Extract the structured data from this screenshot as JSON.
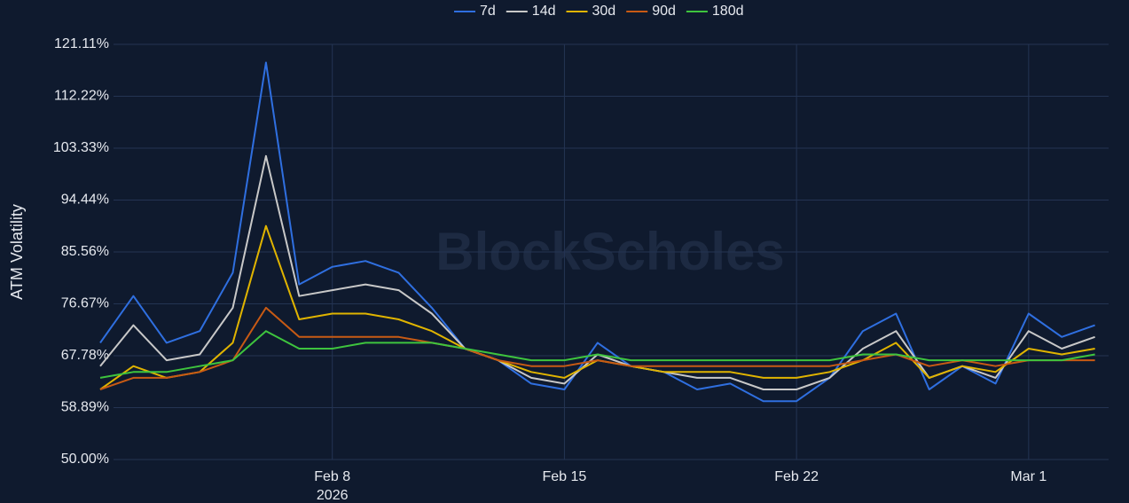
{
  "chart_data": {
    "type": "line",
    "y_label": "ATM Volatility",
    "watermark": "BlockScholes",
    "x": [
      "2026-02-01",
      "2026-02-02",
      "2026-02-03",
      "2026-02-04",
      "2026-02-05",
      "2026-02-06",
      "2026-02-07",
      "2026-02-08",
      "2026-02-09",
      "2026-02-10",
      "2026-02-11",
      "2026-02-12",
      "2026-02-13",
      "2026-02-14",
      "2026-02-15",
      "2026-02-16",
      "2026-02-17",
      "2026-02-18",
      "2026-02-19",
      "2026-02-20",
      "2026-02-21",
      "2026-02-22",
      "2026-02-23",
      "2026-02-24",
      "2026-02-25",
      "2026-02-26",
      "2026-02-27",
      "2026-02-28",
      "2026-03-01",
      "2026-03-02",
      "2026-03-03"
    ],
    "xlim": [
      "2026-02-01",
      "2026-03-04"
    ],
    "xticks": [
      {
        "value": "2026-02-08",
        "label": "Feb 8"
      },
      {
        "value": "2026-02-15",
        "label": "Feb 15"
      },
      {
        "value": "2026-02-22",
        "label": "Feb 22"
      },
      {
        "value": "2026-03-01",
        "label": "Mar 1"
      }
    ],
    "xtick_sublabel": "2026",
    "ylim": [
      50,
      121.11
    ],
    "yticks": [
      {
        "value": 50,
        "label": "50.00%"
      },
      {
        "value": 58.89,
        "label": "58.89%"
      },
      {
        "value": 67.78,
        "label": "67.78%"
      },
      {
        "value": 76.67,
        "label": "76.67%"
      },
      {
        "value": 85.56,
        "label": "85.56%"
      },
      {
        "value": 94.44,
        "label": "94.44%"
      },
      {
        "value": 103.33,
        "label": "103.33%"
      },
      {
        "value": 112.22,
        "label": "112.22%"
      },
      {
        "value": 121.11,
        "label": "121.11%"
      }
    ],
    "grid": true,
    "legend": "top",
    "series": [
      {
        "name": "7d",
        "color": "#2f6fe0",
        "values": [
          70,
          78,
          70,
          72,
          82,
          118,
          80,
          83,
          84,
          82,
          76,
          69,
          67,
          63,
          62,
          70,
          66,
          65,
          62,
          63,
          60,
          60,
          64,
          72,
          75,
          62,
          66,
          63,
          75,
          71,
          73
        ]
      },
      {
        "name": "14d",
        "color": "#c8c8c8",
        "values": [
          66,
          73,
          67,
          68,
          76,
          102,
          78,
          79,
          80,
          79,
          75,
          69,
          67,
          64,
          63,
          68,
          66,
          65,
          64,
          64,
          62,
          62,
          64,
          69,
          72,
          64,
          66,
          64,
          72,
          69,
          71
        ]
      },
      {
        "name": "30d",
        "color": "#e0b400",
        "values": [
          62,
          66,
          64,
          65,
          70,
          90,
          74,
          75,
          75,
          74,
          72,
          69,
          67,
          65,
          64,
          67,
          66,
          65,
          65,
          65,
          64,
          64,
          65,
          67,
          70,
          64,
          66,
          65,
          69,
          68,
          69
        ]
      },
      {
        "name": "90d",
        "color": "#c85a14",
        "values": [
          62,
          64,
          64,
          65,
          67,
          76,
          71,
          71,
          71,
          71,
          70,
          69,
          67,
          66,
          66,
          67,
          66,
          66,
          66,
          66,
          66,
          66,
          66,
          67,
          68,
          66,
          67,
          66,
          67,
          67,
          67
        ]
      },
      {
        "name": "180d",
        "color": "#3ec43e",
        "values": [
          64,
          65,
          65,
          66,
          67,
          72,
          69,
          69,
          70,
          70,
          70,
          69,
          68,
          67,
          67,
          68,
          67,
          67,
          67,
          67,
          67,
          67,
          67,
          68,
          68,
          67,
          67,
          67,
          67,
          67,
          68
        ]
      }
    ]
  }
}
